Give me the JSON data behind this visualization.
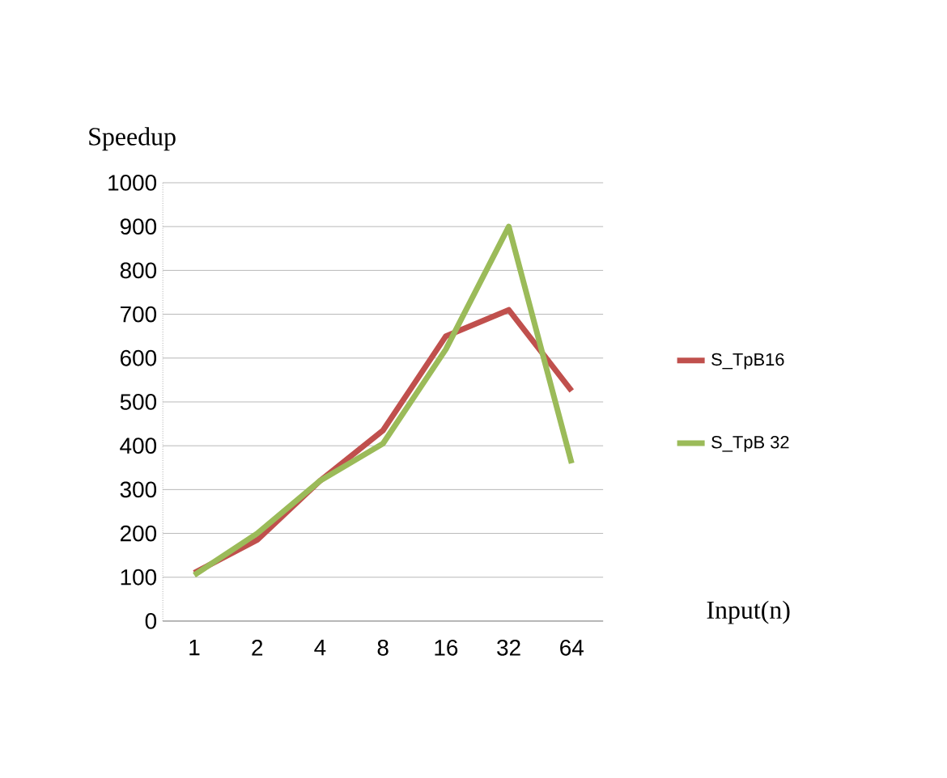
{
  "chart_data": {
    "type": "line",
    "ylabel": "Speedup",
    "xlabel": "Input(n)",
    "categories": [
      "1",
      "2",
      "4",
      "8",
      "16",
      "32",
      "64"
    ],
    "series": [
      {
        "name": "S_TpB16",
        "color": "#c0504d",
        "values": [
          110,
          185,
          320,
          435,
          650,
          710,
          525
        ]
      },
      {
        "name": "S_TpB 32",
        "color": "#9bbb59",
        "values": [
          105,
          200,
          320,
          405,
          620,
          900,
          360
        ]
      }
    ],
    "ylim": [
      0,
      1000
    ],
    "yticks": [
      0,
      100,
      200,
      300,
      400,
      500,
      600,
      700,
      800,
      900,
      1000
    ],
    "grid": "y",
    "legend": "right",
    "marker": "none",
    "line_style": "solid"
  }
}
